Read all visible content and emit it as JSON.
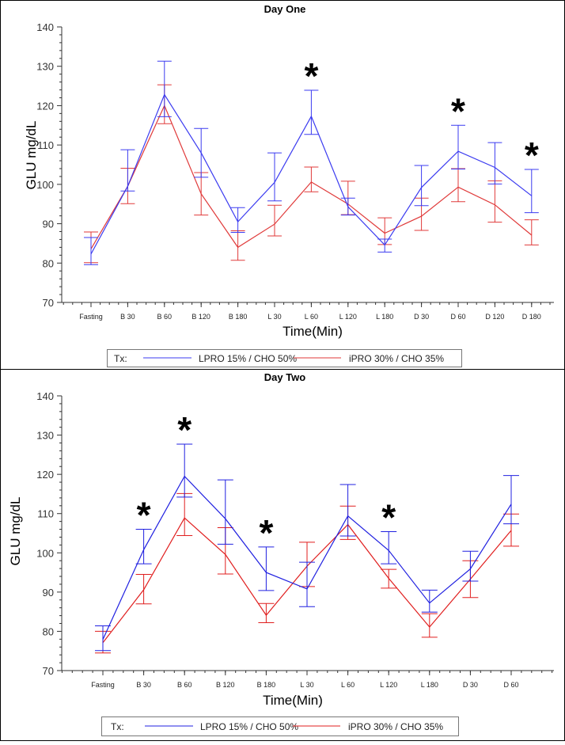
{
  "chart_data": [
    {
      "type": "line",
      "title": "Day One",
      "xlabel": "Time(Min)",
      "ylabel": "GLU mg/dL",
      "ylim": [
        70,
        140
      ],
      "yticks": [
        70,
        80,
        90,
        100,
        110,
        120,
        130,
        140
      ],
      "categories": [
        "Fasting",
        "B 30",
        "B 60",
        "B 120",
        "B 180",
        "L 30",
        "L 60",
        "L 120",
        "L 180",
        "D 30",
        "D 60",
        "D 120",
        "D 180"
      ],
      "legend_title": "Tx:",
      "series": [
        {
          "name": "LPRO 15% / CHO 50%",
          "color": "#3b3bf0",
          "values": [
            82.3,
            99.5,
            122.8,
            108.0,
            90.5,
            100.5,
            117.3,
            94.3,
            84.6,
            99.2,
            108.4,
            104.3,
            97.1
          ],
          "err_low": [
            79.6,
            98.3,
            117.2,
            101.8,
            87.8,
            95.8,
            112.7,
            92.2,
            82.8,
            94.6,
            103.9,
            100.1,
            92.8
          ],
          "err_high": [
            86.5,
            108.8,
            131.3,
            114.2,
            94.1,
            108.0,
            123.9,
            96.5,
            86.1,
            104.8,
            115.0,
            110.6,
            103.8
          ]
        },
        {
          "name": "iPRO 30% / CHO 35%",
          "color": "#e03a3a",
          "values": [
            83.6,
            99.5,
            120.0,
            97.6,
            84.0,
            89.9,
            100.6,
            95.0,
            87.6,
            91.9,
            99.3,
            94.8,
            87.1
          ],
          "err_low": [
            80.1,
            95.1,
            115.4,
            92.2,
            80.7,
            86.9,
            98.1,
            92.3,
            84.7,
            88.3,
            95.6,
            90.4,
            84.6
          ],
          "err_high": [
            87.9,
            104.1,
            125.3,
            103.0,
            88.2,
            94.7,
            104.4,
            100.8,
            91.5,
            96.5,
            104.0,
            100.9,
            91.0
          ]
        }
      ],
      "significance_markers": [
        {
          "category": "L 60",
          "label": "*"
        },
        {
          "category": "D 60",
          "label": "*"
        },
        {
          "category": "D 180",
          "label": "*"
        }
      ]
    },
    {
      "type": "line",
      "title": "Day Two",
      "xlabel": "Time(Min)",
      "ylabel": "GLU mg/dL",
      "ylim": [
        70,
        140
      ],
      "yticks": [
        70,
        80,
        90,
        100,
        110,
        120,
        130,
        140
      ],
      "categories": [
        "Fasting",
        "B 30",
        "B 60",
        "B 120",
        "B 180",
        "L 30",
        "L 60",
        "L 120",
        "L 180",
        "D 30",
        "D 60"
      ],
      "legend_title": "Tx:",
      "series": [
        {
          "name": "LPRO 15% / CHO 50%",
          "color": "#2020e0",
          "values": [
            77.9,
            100.8,
            119.5,
            108.7,
            95.0,
            90.8,
            109.4,
            100.6,
            87.2,
            95.9,
            112.4
          ],
          "err_low": [
            75.1,
            97.2,
            114.2,
            102.2,
            90.4,
            86.3,
            104.3,
            97.2,
            84.9,
            92.8,
            107.4
          ],
          "err_high": [
            81.4,
            106.0,
            127.7,
            118.6,
            101.5,
            97.6,
            117.4,
            105.4,
            90.5,
            100.4,
            119.7
          ]
        },
        {
          "name": "iPRO 30% / CHO 35%",
          "color": "#e01e1e",
          "values": [
            77.1,
            90.6,
            108.9,
            99.6,
            84.1,
            96.6,
            107.2,
            93.5,
            81.1,
            93.3,
            105.7
          ],
          "err_low": [
            74.5,
            87.0,
            104.4,
            94.6,
            82.2,
            91.4,
            103.4,
            91.0,
            78.5,
            88.6,
            101.7
          ],
          "err_high": [
            80.0,
            94.5,
            115.1,
            106.4,
            87.1,
            102.7,
            111.9,
            95.8,
            84.5,
            98.0,
            109.9
          ]
        }
      ],
      "significance_markers": [
        {
          "category": "B 30",
          "label": "*"
        },
        {
          "category": "B 60",
          "label": "*"
        },
        {
          "category": "B 180",
          "label": "*"
        },
        {
          "category": "L 120",
          "label": "*"
        }
      ]
    }
  ]
}
